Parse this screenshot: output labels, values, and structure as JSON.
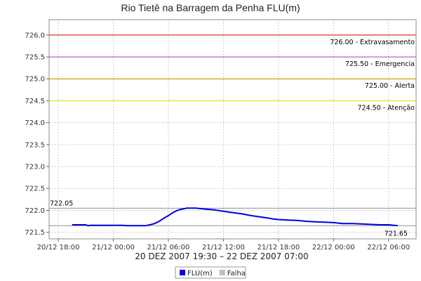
{
  "chart_data": {
    "type": "line",
    "title": "Rio Tietê na Barragem da Penha FLU(m)",
    "period_label": "20 DEZ 2007 19:30 – 22 DEZ 2007 07:00",
    "y_ticks": [
      "721.5",
      "722.0",
      "722.5",
      "723.0",
      "723.5",
      "724.0",
      "724.5",
      "725.0",
      "725.5",
      "726.0"
    ],
    "ylim": [
      721.35,
      726.35
    ],
    "x_axis": {
      "start": "2007-12-20T17:00",
      "end": "2007-12-22T09:00",
      "ticks": [
        {
          "time": "2007-12-20T18:00",
          "label": "20/12 18:00"
        },
        {
          "time": "2007-12-21T00:00",
          "label": "21/12 00:00"
        },
        {
          "time": "2007-12-21T06:00",
          "label": "21/12 06:00"
        },
        {
          "time": "2007-12-21T12:00",
          "label": "21/12 12:00"
        },
        {
          "time": "2007-12-21T18:00",
          "label": "21/12 18:00"
        },
        {
          "time": "2007-12-22T00:00",
          "label": "22/12 00:00"
        },
        {
          "time": "2007-12-22T06:00",
          "label": "22/12 06:00"
        }
      ]
    },
    "reference_lines": [
      {
        "value": 726.0,
        "label": "726.00 - Extravasamento",
        "color": "#e03030"
      },
      {
        "value": 725.5,
        "label": "725.50 - Emergencia",
        "color": "#d040c0"
      },
      {
        "value": 725.0,
        "label": "725.00 - Alerta",
        "color": "#d8a000"
      },
      {
        "value": 724.5,
        "label": "724.50 - Atenção",
        "color": "#e8e000"
      }
    ],
    "extremes": {
      "max": {
        "value": 722.05,
        "label": "722.05"
      },
      "min": {
        "value": 721.65,
        "label": "721.65"
      }
    },
    "series": [
      {
        "name": "FLU(m)",
        "color": "#0000e0",
        "points": [
          [
            "2007-12-20T19:30",
            721.67
          ],
          [
            "2007-12-20T20:00",
            721.67
          ],
          [
            "2007-12-20T20:30",
            721.67
          ],
          [
            "2007-12-20T21:00",
            721.67
          ],
          [
            "2007-12-20T21:15",
            721.65
          ],
          [
            "2007-12-20T21:30",
            721.66
          ],
          [
            "2007-12-20T22:00",
            721.66
          ],
          [
            "2007-12-20T23:00",
            721.66
          ],
          [
            "2007-12-21T00:00",
            721.66
          ],
          [
            "2007-12-21T01:00",
            721.66
          ],
          [
            "2007-12-21T01:30",
            721.65
          ],
          [
            "2007-12-21T02:00",
            721.65
          ],
          [
            "2007-12-21T03:00",
            721.65
          ],
          [
            "2007-12-21T03:30",
            721.65
          ],
          [
            "2007-12-21T04:00",
            721.67
          ],
          [
            "2007-12-21T04:30",
            721.7
          ],
          [
            "2007-12-21T05:00",
            721.75
          ],
          [
            "2007-12-21T05:30",
            721.82
          ],
          [
            "2007-12-21T06:00",
            721.88
          ],
          [
            "2007-12-21T06:30",
            721.95
          ],
          [
            "2007-12-21T07:00",
            722.0
          ],
          [
            "2007-12-21T07:30",
            722.03
          ],
          [
            "2007-12-21T08:00",
            722.05
          ],
          [
            "2007-12-21T09:00",
            722.05
          ],
          [
            "2007-12-21T10:00",
            722.03
          ],
          [
            "2007-12-21T11:00",
            722.01
          ],
          [
            "2007-12-21T12:00",
            721.98
          ],
          [
            "2007-12-21T13:00",
            721.95
          ],
          [
            "2007-12-21T14:00",
            721.92
          ],
          [
            "2007-12-21T15:00",
            721.88
          ],
          [
            "2007-12-21T16:00",
            721.85
          ],
          [
            "2007-12-21T17:00",
            721.82
          ],
          [
            "2007-12-21T17:30",
            721.8
          ],
          [
            "2007-12-21T18:00",
            721.79
          ],
          [
            "2007-12-21T19:00",
            721.78
          ],
          [
            "2007-12-21T20:00",
            721.77
          ],
          [
            "2007-12-21T21:00",
            721.75
          ],
          [
            "2007-12-21T22:00",
            721.74
          ],
          [
            "2007-12-21T23:00",
            721.73
          ],
          [
            "2007-12-22T00:00",
            721.72
          ],
          [
            "2007-12-22T01:00",
            721.7
          ],
          [
            "2007-12-22T02:00",
            721.7
          ],
          [
            "2007-12-22T03:00",
            721.69
          ],
          [
            "2007-12-22T04:00",
            721.68
          ],
          [
            "2007-12-22T05:00",
            721.67
          ],
          [
            "2007-12-22T06:00",
            721.67
          ],
          [
            "2007-12-22T07:00",
            721.65
          ]
        ]
      }
    ],
    "legend": {
      "placement": "bottom-center",
      "items": [
        {
          "label": "FLU(m)",
          "color": "#0000e0"
        },
        {
          "label": "Falha",
          "color": "#c0c0c0"
        }
      ]
    },
    "grid": true
  }
}
